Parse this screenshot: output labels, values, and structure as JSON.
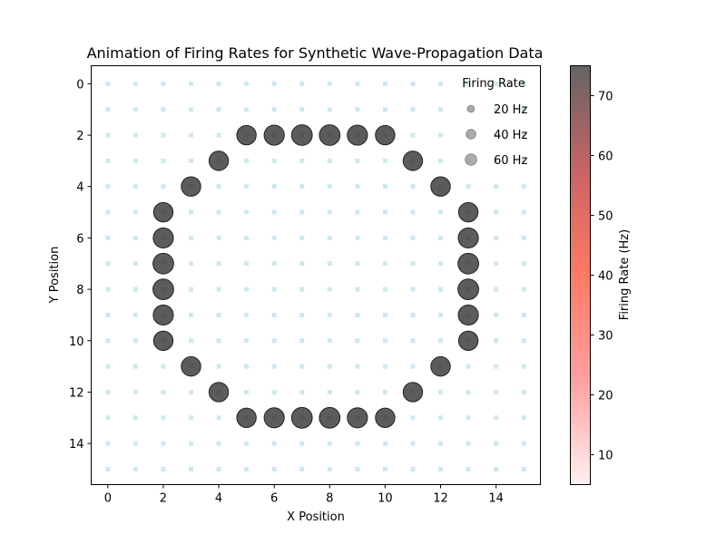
{
  "chart_data": {
    "type": "scatter",
    "title": "Animation of Firing Rates for Synthetic Wave-Propagation Data",
    "xlabel": "X Position",
    "ylabel": "Y Position",
    "xlim": [
      -0.6,
      15.6
    ],
    "ylim": [
      15.6,
      -0.7
    ],
    "y_inverted": true,
    "xticks": [
      0,
      2,
      4,
      6,
      8,
      10,
      12,
      14
    ],
    "yticks": [
      0,
      2,
      4,
      6,
      8,
      10,
      12,
      14
    ],
    "grid": false,
    "background_grid": {
      "x": [
        0,
        15
      ],
      "y": [
        0,
        15
      ],
      "color": "#add8e6",
      "marker": "square"
    },
    "series": [
      {
        "marker_color": "#333333",
        "points": [
          {
            "x": 5,
            "y": 2,
            "rate": 65
          },
          {
            "x": 6,
            "y": 2,
            "rate": 70
          },
          {
            "x": 7,
            "y": 2,
            "rate": 74
          },
          {
            "x": 8,
            "y": 2,
            "rate": 74
          },
          {
            "x": 9,
            "y": 2,
            "rate": 70
          },
          {
            "x": 10,
            "y": 2,
            "rate": 65
          },
          {
            "x": 4,
            "y": 3,
            "rate": 65
          },
          {
            "x": 11,
            "y": 3,
            "rate": 65
          },
          {
            "x": 3,
            "y": 4,
            "rate": 65
          },
          {
            "x": 12,
            "y": 4,
            "rate": 65
          },
          {
            "x": 2,
            "y": 5,
            "rate": 65
          },
          {
            "x": 13,
            "y": 5,
            "rate": 65
          },
          {
            "x": 2,
            "y": 6,
            "rate": 70
          },
          {
            "x": 13,
            "y": 6,
            "rate": 70
          },
          {
            "x": 2,
            "y": 7,
            "rate": 74
          },
          {
            "x": 13,
            "y": 7,
            "rate": 74
          },
          {
            "x": 2,
            "y": 8,
            "rate": 74
          },
          {
            "x": 13,
            "y": 8,
            "rate": 74
          },
          {
            "x": 2,
            "y": 9,
            "rate": 70
          },
          {
            "x": 13,
            "y": 9,
            "rate": 70
          },
          {
            "x": 2,
            "y": 10,
            "rate": 65
          },
          {
            "x": 13,
            "y": 10,
            "rate": 65
          },
          {
            "x": 3,
            "y": 11,
            "rate": 65
          },
          {
            "x": 12,
            "y": 11,
            "rate": 65
          },
          {
            "x": 4,
            "y": 12,
            "rate": 65
          },
          {
            "x": 11,
            "y": 12,
            "rate": 65
          },
          {
            "x": 5,
            "y": 13,
            "rate": 65
          },
          {
            "x": 6,
            "y": 13,
            "rate": 70
          },
          {
            "x": 7,
            "y": 13,
            "rate": 74
          },
          {
            "x": 8,
            "y": 13,
            "rate": 74
          },
          {
            "x": 9,
            "y": 13,
            "rate": 70
          },
          {
            "x": 10,
            "y": 13,
            "rate": 65
          }
        ]
      }
    ],
    "legend": {
      "title": "Firing Rate",
      "placement": "top-right",
      "entries": [
        {
          "label": "20 Hz",
          "rate": 20
        },
        {
          "label": "40 Hz",
          "rate": 40
        },
        {
          "label": "60 Hz",
          "rate": 60
        }
      ]
    },
    "colorbar": {
      "label": "Firing Rate (Hz)",
      "range": [
        5,
        75
      ],
      "ticks": [
        10,
        20,
        30,
        40,
        50,
        60,
        70
      ],
      "colors": [
        "#fff0f0",
        "#ffa0a0",
        "#ff7a64",
        "#c86464",
        "#646464"
      ]
    }
  }
}
